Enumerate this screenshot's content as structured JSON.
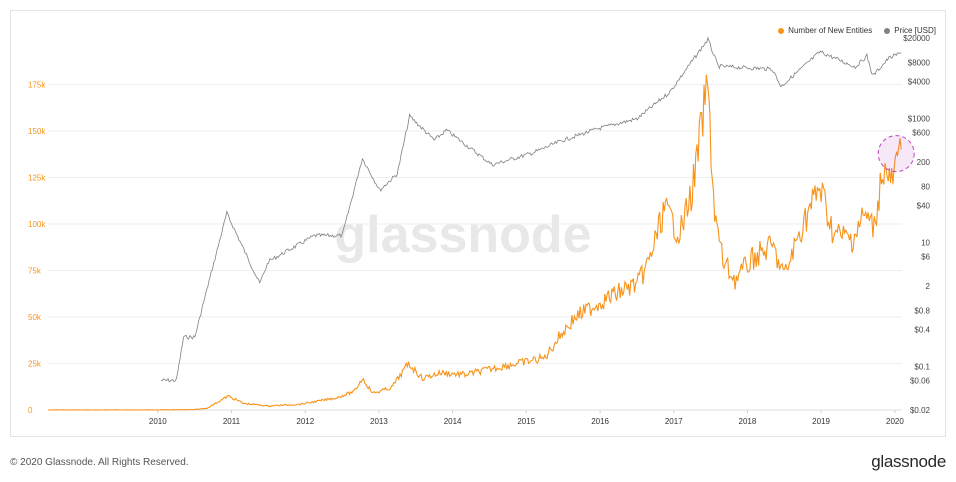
{
  "chart_data": {
    "type": "line",
    "watermark": "glassnode",
    "legend": [
      {
        "name": "Number of New Entities",
        "color": "#f7931a"
      },
      {
        "name": "Price [USD]",
        "color": "#808080"
      }
    ],
    "legend_position": "top-right",
    "x_ticks": [
      "2010",
      "2011",
      "2012",
      "2013",
      "2014",
      "2015",
      "2016",
      "2017",
      "2018",
      "2019",
      "2020"
    ],
    "y_left": {
      "ticks": [
        "0",
        "25k",
        "50k",
        "75k",
        "100k",
        "125k",
        "150k",
        "175k"
      ],
      "range": [
        0,
        200000
      ],
      "color": "#f7931a"
    },
    "y_right": {
      "scale": "log",
      "ticks": [
        "$0.02",
        "$0.06",
        "$0.1",
        "$0.4",
        "$0.8",
        "2",
        "$6",
        "10",
        "$40",
        "80",
        "200",
        "$600",
        "$1000",
        "$4000",
        "$8000",
        "$20000"
      ],
      "color": "#444444"
    },
    "series": [
      {
        "name": "Number of New Entities",
        "color": "#f7931a",
        "points": [
          [
            "2009-01-03",
            0
          ],
          [
            "2010-07-01",
            50
          ],
          [
            "2010-12-31",
            200
          ],
          [
            "2011-03-01",
            900
          ],
          [
            "2011-06-15",
            7500
          ],
          [
            "2011-09-01",
            3500
          ],
          [
            "2012-01-01",
            2200
          ],
          [
            "2012-06-01",
            3000
          ],
          [
            "2012-12-01",
            6500
          ],
          [
            "2013-03-01",
            10000
          ],
          [
            "2013-04-10",
            17000
          ],
          [
            "2013-06-01",
            9000
          ],
          [
            "2013-09-01",
            12000
          ],
          [
            "2013-11-25",
            25000
          ],
          [
            "2014-02-01",
            17000
          ],
          [
            "2014-05-01",
            20000
          ],
          [
            "2014-09-01",
            19000
          ],
          [
            "2015-01-01",
            22000
          ],
          [
            "2015-07-01",
            26000
          ],
          [
            "2015-10-01",
            28000
          ],
          [
            "2015-12-15",
            40000
          ],
          [
            "2016-03-01",
            50000
          ],
          [
            "2016-07-01",
            58000
          ],
          [
            "2016-11-01",
            65000
          ],
          [
            "2017-01-05",
            68000
          ],
          [
            "2017-03-01",
            80000
          ],
          [
            "2017-05-15",
            108000
          ],
          [
            "2017-08-01",
            95000
          ],
          [
            "2017-10-01",
            118000
          ],
          [
            "2017-12-15",
            175000
          ],
          [
            "2018-01-20",
            105000
          ],
          [
            "2018-03-01",
            80000
          ],
          [
            "2018-05-01",
            70000
          ],
          [
            "2018-08-01",
            82000
          ],
          [
            "2018-11-01",
            88000
          ],
          [
            "2019-01-01",
            72000
          ],
          [
            "2019-04-01",
            100000
          ],
          [
            "2019-06-25",
            120000
          ],
          [
            "2019-09-01",
            95000
          ],
          [
            "2019-12-01",
            92000
          ],
          [
            "2020-02-01",
            105000
          ],
          [
            "2020-03-20",
            98000
          ],
          [
            "2020-05-01",
            130000
          ],
          [
            "2020-06-15",
            122000
          ],
          [
            "2020-08-01",
            140000
          ]
        ]
      },
      {
        "name": "Price [USD]",
        "color": "#808080",
        "points": [
          [
            "2010-07-17",
            0.06
          ],
          [
            "2010-10-01",
            0.06
          ],
          [
            "2010-11-06",
            0.3
          ],
          [
            "2011-01-01",
            0.3
          ],
          [
            "2011-02-10",
            1.0
          ],
          [
            "2011-06-08",
            30
          ],
          [
            "2011-11-18",
            2.2
          ],
          [
            "2012-01-01",
            5
          ],
          [
            "2012-08-16",
            13
          ],
          [
            "2012-12-31",
            13
          ],
          [
            "2013-04-10",
            230
          ],
          [
            "2013-07-05",
            70
          ],
          [
            "2013-09-30",
            130
          ],
          [
            "2013-11-30",
            1100
          ],
          [
            "2014-04-01",
            450
          ],
          [
            "2014-06-01",
            650
          ],
          [
            "2015-01-14",
            180
          ],
          [
            "2015-08-01",
            280
          ],
          [
            "2015-12-15",
            430
          ],
          [
            "2016-06-15",
            680
          ],
          [
            "2017-01-01",
            1000
          ],
          [
            "2017-06-12",
            2700
          ],
          [
            "2017-12-17",
            19000
          ],
          [
            "2018-02-06",
            7000
          ],
          [
            "2018-11-01",
            6300
          ],
          [
            "2018-12-15",
            3300
          ],
          [
            "2019-06-26",
            12000
          ],
          [
            "2019-12-18",
            6800
          ],
          [
            "2020-02-13",
            10300
          ],
          [
            "2020-03-13",
            4900
          ],
          [
            "2020-06-01",
            9500
          ],
          [
            "2020-08-01",
            11500
          ]
        ]
      }
    ],
    "highlight_circle": {
      "date": "2020-08-01",
      "y_value": 140000,
      "color": "#c040c0"
    }
  },
  "footer": {
    "copyright": "© 2020 Glassnode. All Rights Reserved.",
    "brand": "glassnode"
  }
}
